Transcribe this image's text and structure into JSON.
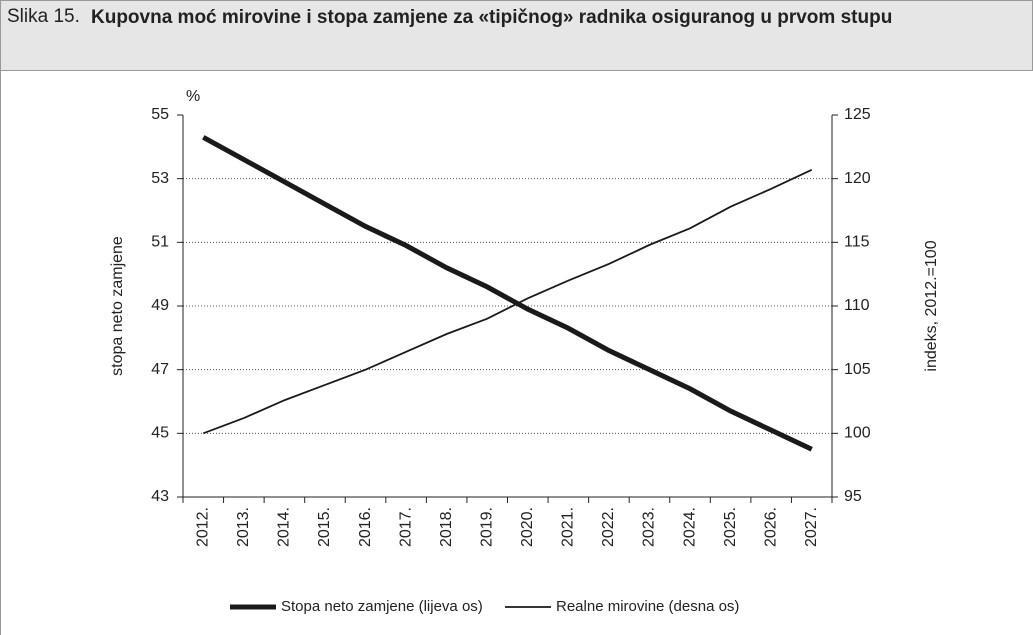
{
  "figure_label": "Slika 15.",
  "chart_data": {
    "type": "line",
    "title": "Kupovna moć mirovine i stopa zamjene za «tipičnog» radnika osiguranog u prvom stupu",
    "unit_label": "%",
    "y_label": "stopa neto zamjene",
    "y2_label": "indeks, 2012.=100",
    "categories": [
      "2012.",
      "2013.",
      "2014.",
      "2015.",
      "2016.",
      "2017.",
      "2018.",
      "2019.",
      "2020.",
      "2021.",
      "2022.",
      "2023.",
      "2024.",
      "2025.",
      "2026.",
      "2027."
    ],
    "series": [
      {
        "name": "Stopa neto zamjene (lijeva os)",
        "color": "#1a1a1a",
        "width": 5,
        "axis": "y",
        "values": [
          54.3,
          53.6,
          52.9,
          52.2,
          51.5,
          50.9,
          50.2,
          49.6,
          48.9,
          48.3,
          47.6,
          47.0,
          46.4,
          45.7,
          45.1,
          44.5
        ]
      },
      {
        "name": "Realne mirovine (desna os)",
        "color": "#1a1a1a",
        "width": 1.8,
        "axis": "y2",
        "values": [
          100,
          101.2,
          102.6,
          103.8,
          105.0,
          106.4,
          107.8,
          109.0,
          110.6,
          112.0,
          113.3,
          114.8,
          116.1,
          117.8,
          119.2,
          120.7
        ]
      }
    ],
    "ylim": [
      43,
      55
    ],
    "yticks": [
      43,
      45,
      47,
      49,
      51,
      53,
      55
    ],
    "y2lim": [
      95,
      125
    ],
    "y2ticks": [
      95,
      100,
      105,
      110,
      115,
      120,
      125
    ],
    "grid": true,
    "legend": "bottom"
  }
}
